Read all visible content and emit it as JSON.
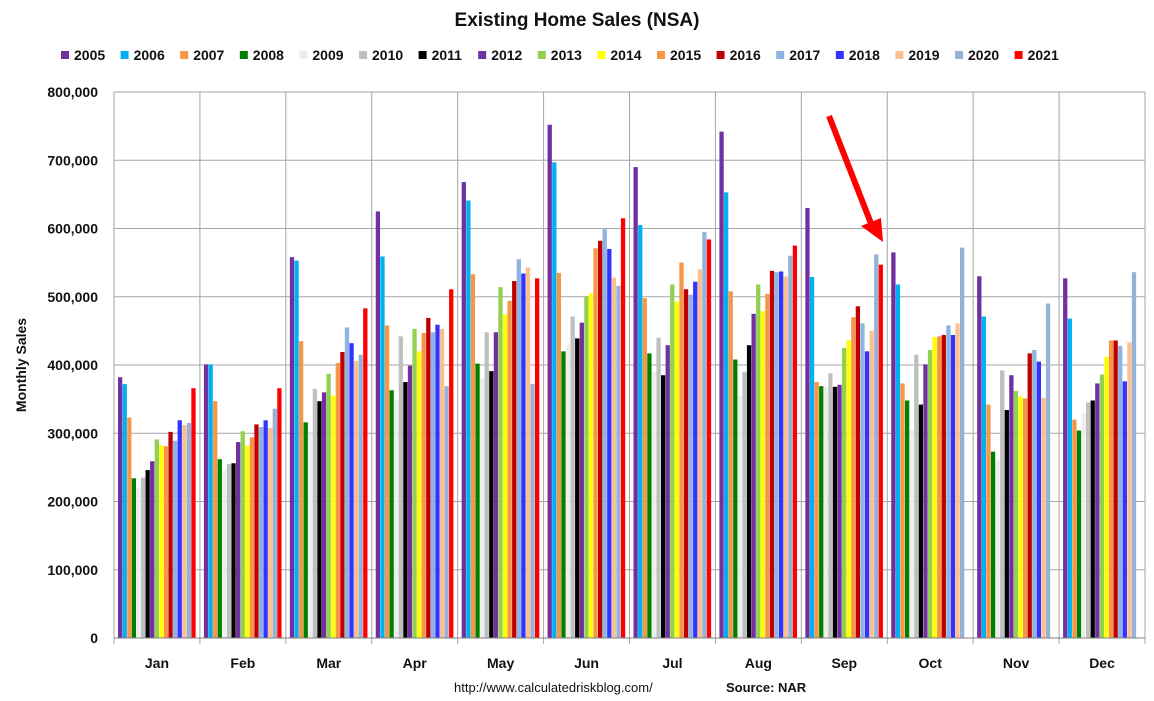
{
  "chart_data": {
    "type": "bar",
    "title": "Existing Home Sales (NSA)",
    "xlabel": "",
    "ylabel": "Monthly Sales",
    "ylim": [
      0,
      800000
    ],
    "yticks": [
      "0",
      "100,000",
      "200,000",
      "300,000",
      "400,000",
      "500,000",
      "600,000",
      "700,000",
      "800,000"
    ],
    "grid": "on",
    "legend_position": "top",
    "categories": [
      "Jan",
      "Feb",
      "Mar",
      "Apr",
      "May",
      "Jun",
      "Jul",
      "Aug",
      "Sep",
      "Oct",
      "Nov",
      "Dec"
    ],
    "series": [
      {
        "name": "2005",
        "color": "#7030A0",
        "values": [
          382000,
          401000,
          558000,
          625000,
          668000,
          752000,
          690000,
          742000,
          630000,
          565000,
          530000,
          527000
        ]
      },
      {
        "name": "2006",
        "color": "#00B0F0",
        "values": [
          372000,
          401000,
          553000,
          559000,
          641000,
          697000,
          605000,
          653000,
          529000,
          518000,
          471000,
          468000
        ]
      },
      {
        "name": "2007",
        "color": "#F79646",
        "values": [
          323000,
          347000,
          435000,
          458000,
          533000,
          535000,
          498000,
          508000,
          375000,
          373000,
          342000,
          320000
        ]
      },
      {
        "name": "2008",
        "color": "#008000",
        "values": [
          234000,
          262000,
          316000,
          363000,
          402000,
          420000,
          417000,
          408000,
          369000,
          348000,
          273000,
          304000
        ]
      },
      {
        "name": "2009",
        "color": "#EEEEEE",
        "values": [
          220000,
          245000,
          300000,
          348000,
          380000,
          430000,
          390000,
          355000,
          368000,
          305000,
          260000,
          330000
        ]
      },
      {
        "name": "2010",
        "color": "#BFBFBF",
        "values": [
          235000,
          255000,
          365000,
          442000,
          448000,
          471000,
          440000,
          390000,
          388000,
          415000,
          392000,
          345000
        ]
      },
      {
        "name": "2011",
        "color": "#000000",
        "values": [
          246000,
          256000,
          347000,
          375000,
          391000,
          439000,
          385000,
          429000,
          368000,
          342000,
          334000,
          348000
        ]
      },
      {
        "name": "2012",
        "color": "#7030A0",
        "values": [
          259000,
          287000,
          360000,
          399000,
          448000,
          462000,
          429000,
          475000,
          371000,
          401000,
          385000,
          373000
        ]
      },
      {
        "name": "2013",
        "color": "#92D050",
        "values": [
          291000,
          303000,
          387000,
          453000,
          514000,
          500000,
          518000,
          518000,
          425000,
          422000,
          362000,
          386000
        ]
      },
      {
        "name": "2014",
        "color": "#FFFF00",
        "values": [
          282000,
          282000,
          355000,
          420000,
          474000,
          505000,
          493000,
          479000,
          436000,
          441000,
          354000,
          412000
        ]
      },
      {
        "name": "2015",
        "color": "#F79646",
        "values": [
          281000,
          294000,
          403000,
          447000,
          494000,
          571000,
          550000,
          504000,
          470000,
          442000,
          351000,
          436000
        ]
      },
      {
        "name": "2016",
        "color": "#C00000",
        "values": [
          302000,
          313000,
          419000,
          469000,
          523000,
          582000,
          511000,
          538000,
          486000,
          444000,
          417000,
          436000
        ]
      },
      {
        "name": "2017",
        "color": "#8DB4E2",
        "values": [
          289000,
          309000,
          455000,
          448000,
          555000,
          599000,
          503000,
          536000,
          461000,
          458000,
          422000,
          428000
        ]
      },
      {
        "name": "2018",
        "color": "#3333FF",
        "values": [
          319000,
          319000,
          432000,
          459000,
          534000,
          570000,
          522000,
          537000,
          420000,
          444000,
          405000,
          376000
        ]
      },
      {
        "name": "2019",
        "color": "#FAC090",
        "values": [
          312000,
          308000,
          406000,
          453000,
          543000,
          528000,
          540000,
          530000,
          450000,
          461000,
          352000,
          433000
        ]
      },
      {
        "name": "2020",
        "color": "#95B3D7",
        "values": [
          315000,
          336000,
          415000,
          369000,
          372000,
          516000,
          595000,
          560000,
          562000,
          572000,
          490000,
          536000
        ]
      },
      {
        "name": "2021",
        "color": "#FF0000",
        "values": [
          366000,
          366000,
          483000,
          511000,
          527000,
          615000,
          584000,
          575000,
          547000,
          null,
          null,
          null
        ]
      }
    ],
    "annotations": [
      "arrow pointing to Sep 2021"
    ]
  },
  "footer": {
    "url": "http://www.calculatedriskblog.com/",
    "source": "Source: NAR"
  }
}
